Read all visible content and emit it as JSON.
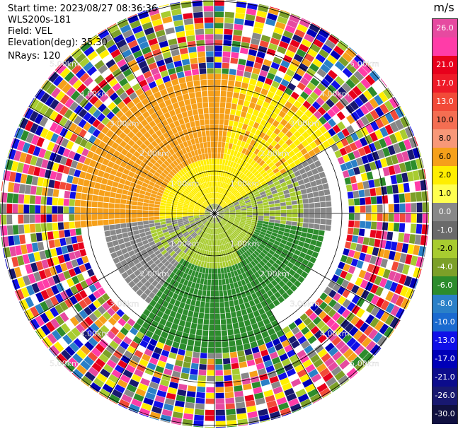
{
  "info": {
    "start_time": "Start time: 2023/08/27 08:36:36",
    "station": "WLS200s-181",
    "field": "Field: VEL",
    "elevation": "Elevation(deg): 35.30",
    "nrays": "NRays: 120"
  },
  "colorbar": {
    "unit": "m/s",
    "segments": [
      {
        "color": "#e64aa0",
        "label": "26.0"
      },
      {
        "color": "#ff3ca8",
        "label": ""
      },
      {
        "color": "#e8001c",
        "label": "21.0"
      },
      {
        "color": "#ee1a28",
        "label": "17.0"
      },
      {
        "color": "#f24a38",
        "label": "13.0"
      },
      {
        "color": "#f46e52",
        "label": "10.0"
      },
      {
        "color": "#f89878",
        "label": "8.0"
      },
      {
        "color": "#f6a01a",
        "label": "6.0"
      },
      {
        "color": "#ffee00",
        "label": "2.0"
      },
      {
        "color": "#ffff50",
        "label": "1.0"
      },
      {
        "color": "#888888",
        "label": "0.0"
      },
      {
        "color": "#6a6a6a",
        "label": "-1.0"
      },
      {
        "color": "#a8cc30",
        "label": "-2.0"
      },
      {
        "color": "#7ca028",
        "label": "-4.0"
      },
      {
        "color": "#2c8c2c",
        "label": "-6.0"
      },
      {
        "color": "#2a80c8",
        "label": "-8.0"
      },
      {
        "color": "#1a6ad0",
        "label": "-10.0"
      },
      {
        "color": "#1010e8",
        "label": "-13.0"
      },
      {
        "color": "#0000b8",
        "label": "-17.0"
      },
      {
        "color": "#0c0c8c",
        "label": "-21.0"
      },
      {
        "color": "#181870",
        "label": "-26.0"
      },
      {
        "color": "#101040",
        "label": "-30.0"
      }
    ]
  },
  "range_labels": [
    {
      "text": "1.00km",
      "ring": 1
    },
    {
      "text": "2.00km",
      "ring": 2
    },
    {
      "text": "3.00km",
      "ring": 3
    },
    {
      "text": "4.00km",
      "ring": 4
    },
    {
      "text": "5.00km",
      "ring": 5
    }
  ],
  "field_colors": {
    "yellow": "#ffee00",
    "orange": "#f6a01a",
    "gray": "#888888",
    "olive": "#a8cc30",
    "green": "#2c8c2c",
    "noise": [
      "#e64aa0",
      "#ff3ca8",
      "#e8001c",
      "#f24a38",
      "#f6a01a",
      "#ffee00",
      "#2c8c2c",
      "#a8cc30",
      "#1010e8",
      "#0000b8",
      "#181870",
      "#2a80c8",
      "#ffffff",
      "#7ca028",
      "#888888"
    ]
  }
}
